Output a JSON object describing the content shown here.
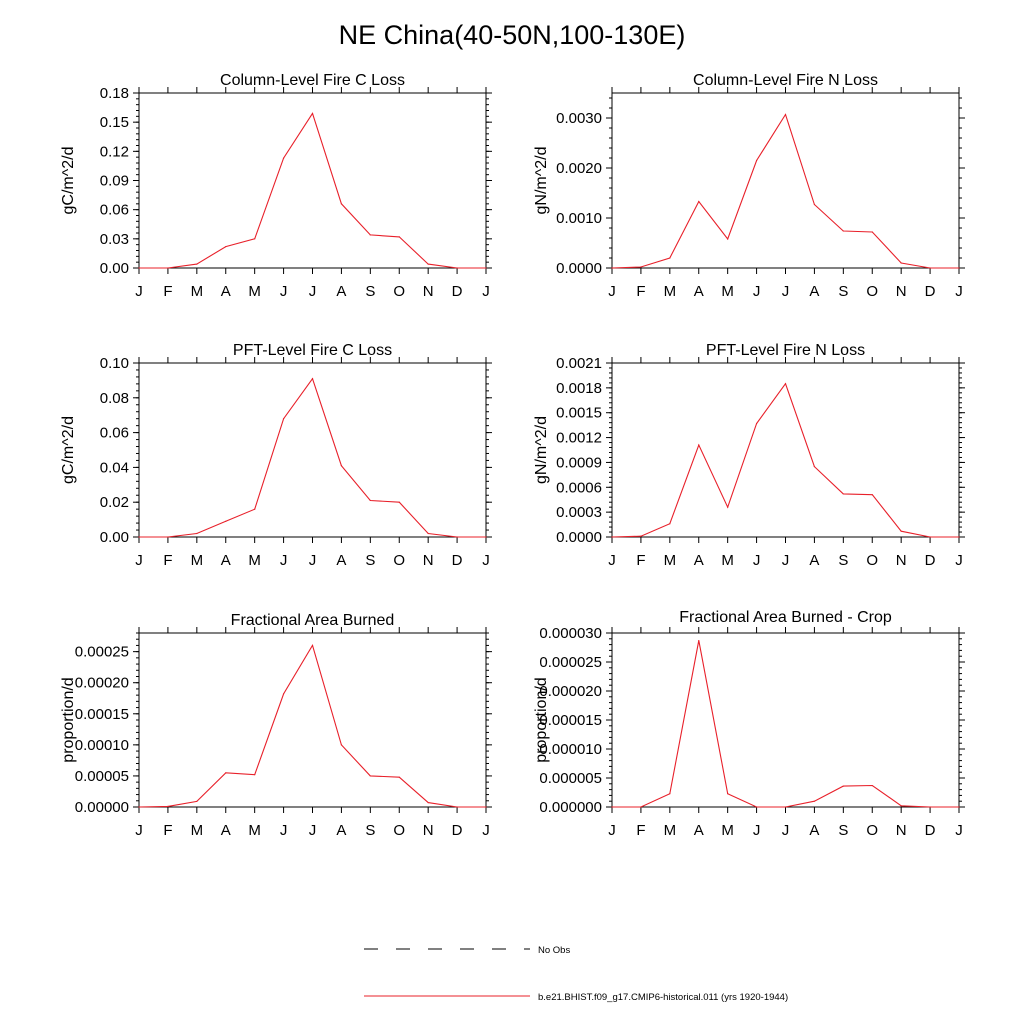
{
  "title": "NE China(40-50N,100-130E)",
  "month_ticks": [
    "J",
    "F",
    "M",
    "A",
    "M",
    "J",
    "J",
    "A",
    "S",
    "O",
    "N",
    "D",
    "J"
  ],
  "colors": {
    "series": "#e8202a",
    "axis": "#000000"
  },
  "legend": {
    "items": [
      {
        "label": "No Obs",
        "style": "dashed",
        "color": "#000000"
      },
      {
        "label": "b.e21.BHIST.f09_g17.CMIP6-historical.011 (yrs 1920-1944)",
        "style": "solid",
        "color": "#e8202a"
      }
    ]
  },
  "chart_data": [
    {
      "type": "line",
      "title": "Column-Level Fire C Loss",
      "ylabel": "gC/m^2/d",
      "ylim": [
        0,
        0.18
      ],
      "yticks": [
        "0.00",
        "0.03",
        "0.06",
        "0.09",
        "0.12",
        "0.15",
        "0.18"
      ],
      "x": [
        1,
        2,
        3,
        4,
        5,
        6,
        7,
        8,
        9,
        10,
        11,
        12,
        13
      ],
      "series": [
        {
          "values": [
            0.0,
            0.0,
            0.004,
            0.022,
            0.03,
            0.113,
            0.159,
            0.066,
            0.034,
            0.032,
            0.004,
            0.0,
            0.0
          ]
        }
      ]
    },
    {
      "type": "line",
      "title": "Column-Level Fire N Loss",
      "ylabel": "gN/m^2/d",
      "ylim": [
        0,
        0.0035
      ],
      "yticks": [
        "0.0000",
        "0.0010",
        "0.0020",
        "0.0030"
      ],
      "x": [
        1,
        2,
        3,
        4,
        5,
        6,
        7,
        8,
        9,
        10,
        11,
        12,
        13
      ],
      "series": [
        {
          "values": [
            0.0,
            2e-05,
            0.0002,
            0.00133,
            0.00058,
            0.00215,
            0.00307,
            0.00127,
            0.00074,
            0.00072,
            0.0001,
            0.0,
            0.0
          ]
        }
      ]
    },
    {
      "type": "line",
      "title": "PFT-Level Fire C Loss",
      "ylabel": "gC/m^2/d",
      "ylim": [
        0,
        0.1
      ],
      "yticks": [
        "0.00",
        "0.02",
        "0.04",
        "0.06",
        "0.08",
        "0.10"
      ],
      "x": [
        1,
        2,
        3,
        4,
        5,
        6,
        7,
        8,
        9,
        10,
        11,
        12,
        13
      ],
      "series": [
        {
          "values": [
            0.0,
            0.0,
            0.002,
            0.009,
            0.016,
            0.068,
            0.091,
            0.041,
            0.021,
            0.02,
            0.002,
            0.0,
            0.0
          ]
        }
      ]
    },
    {
      "type": "line",
      "title": "PFT-Level Fire N Loss",
      "ylabel": "gN/m^2/d",
      "ylim": [
        0,
        0.0021
      ],
      "yticks": [
        "0.0000",
        "0.0003",
        "0.0006",
        "0.0009",
        "0.0012",
        "0.0015",
        "0.0018",
        "0.0021"
      ],
      "x": [
        1,
        2,
        3,
        4,
        5,
        6,
        7,
        8,
        9,
        10,
        11,
        12,
        13
      ],
      "series": [
        {
          "values": [
            0.0,
            1e-05,
            0.00016,
            0.00111,
            0.00036,
            0.00137,
            0.00185,
            0.00085,
            0.00052,
            0.00051,
            7e-05,
            0.0,
            0.0
          ]
        }
      ]
    },
    {
      "type": "line",
      "title": "Fractional Area Burned",
      "ylabel": "proportion/d",
      "ylim": [
        0,
        0.00028
      ],
      "yticks": [
        "0.00000",
        "0.00005",
        "0.00010",
        "0.00015",
        "0.00020",
        "0.00025"
      ],
      "x": [
        1,
        2,
        3,
        4,
        5,
        6,
        7,
        8,
        9,
        10,
        11,
        12,
        13
      ],
      "series": [
        {
          "values": [
            0.0,
            1e-06,
            9e-06,
            5.5e-05,
            5.2e-05,
            0.000182,
            0.00026,
            0.0001,
            5e-05,
            4.8e-05,
            7e-06,
            0.0,
            0.0
          ]
        }
      ]
    },
    {
      "type": "line",
      "title": "Fractional Area Burned - Crop",
      "ylabel": "proportion/d",
      "ylim": [
        0,
        3e-05
      ],
      "yticks": [
        "0.000000",
        "0.000005",
        "0.000010",
        "0.000015",
        "0.000020",
        "0.000025",
        "0.000030"
      ],
      "x": [
        1,
        2,
        3,
        4,
        5,
        6,
        7,
        8,
        9,
        10,
        11,
        12,
        13
      ],
      "series": [
        {
          "values": [
            0.0,
            0.0,
            2.3e-06,
            2.87e-05,
            2.3e-06,
            0.0,
            0.0,
            1e-06,
            3.6e-06,
            3.7e-06,
            2e-07,
            0.0,
            0.0
          ]
        }
      ]
    }
  ]
}
